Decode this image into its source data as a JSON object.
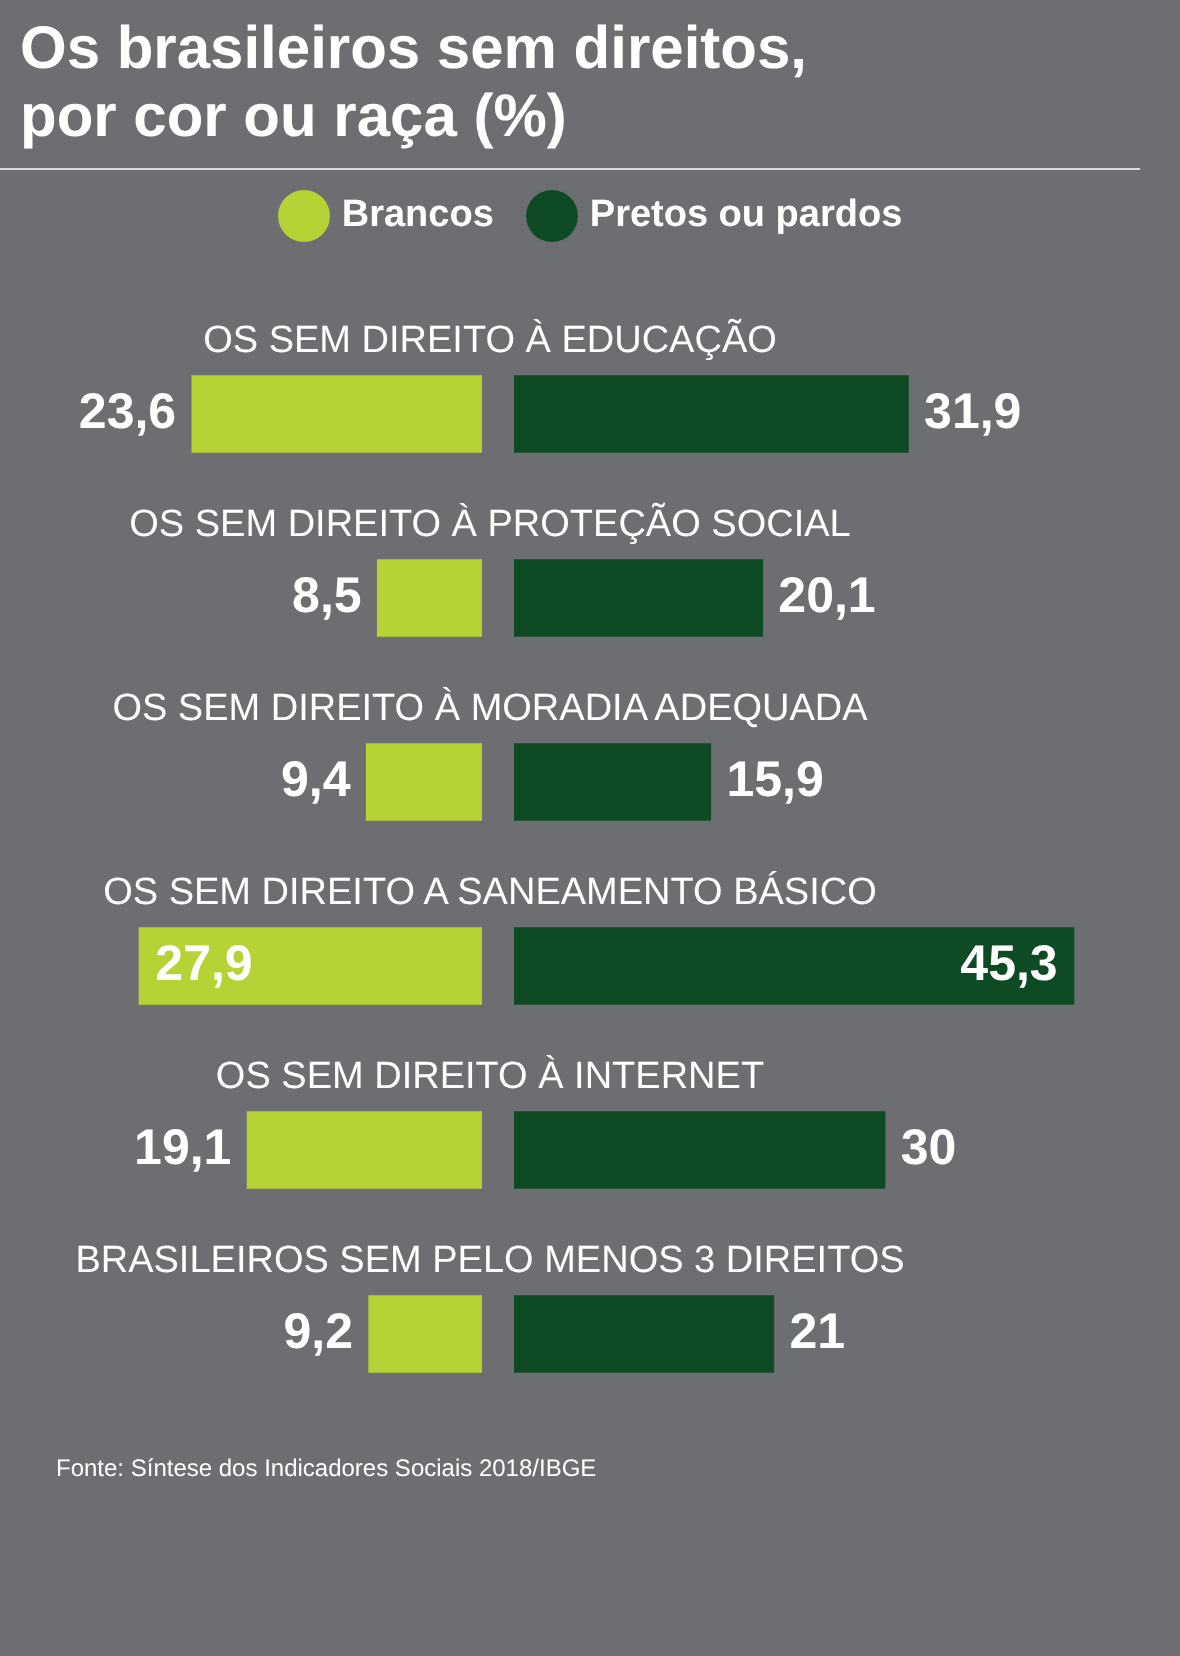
{
  "chart_data": [
    {
      "type": "bar",
      "orientation": "horizontal",
      "title": "Os brasileiros sem direitos,\npor cor ou raça (%)",
      "categories": [
        "OS SEM DIREITO À EDUCAÇÃO",
        "OS SEM DIREITO À PROTEÇÃO SOCIAL",
        "OS SEM DIREITO À MORADIA ADEQUADA",
        "OS SEM DIREITO A SANEAMENTO BÁSICO",
        "OS SEM DIREITO À INTERNET",
        "BRASILEIROS SEM PELO MENOS 3 DIREITOS"
      ],
      "series": [
        {
          "name": "Brancos",
          "color": "#b5d334",
          "values": [
            23.6,
            8.5,
            9.4,
            27.9,
            19.1,
            9.2
          ],
          "value_labels": [
            "23,6",
            "8,5",
            "9,4",
            "27,9",
            "19,1",
            "9,2"
          ]
        }
      ],
      "legend": "top",
      "annotations": [
        "Fonte: Síntese dos Indicadores Sociais 2018/IBGE"
      ]
    },
    {
      "type": "bar",
      "orientation": "horizontal",
      "series": [
        {
          "name": "Pretos ou pardos",
          "color": "#0e4a24",
          "values": [
            31.9,
            20.1,
            15.9,
            45.3,
            30,
            21
          ],
          "value_labels": [
            "31,9",
            "20,1",
            "15,9",
            "45,3",
            "30",
            "21"
          ]
        }
      ]
    }
  ]
}
